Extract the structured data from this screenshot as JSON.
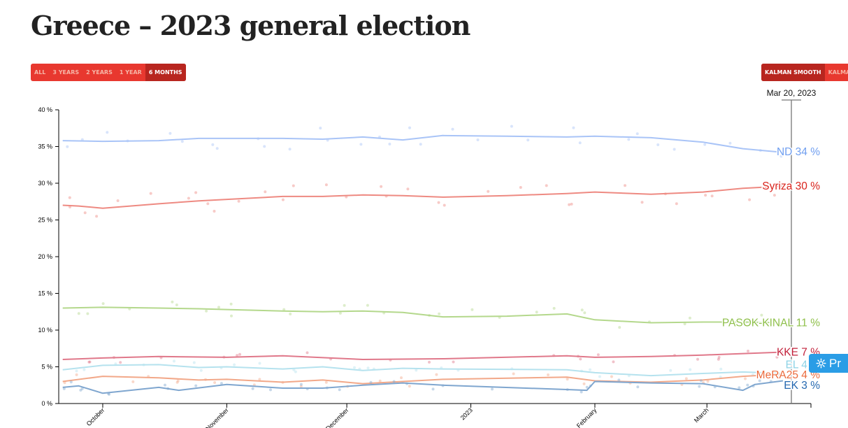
{
  "title": "Greece – 2023 general election",
  "range_buttons": [
    "ALL",
    "3 YEARS",
    "2 YEARS",
    "1 YEAR",
    "6 MONTHS"
  ],
  "range_active": "6 MONTHS",
  "smooth_buttons": [
    "KALMAN SMOOTH",
    "KALMAN"
  ],
  "smooth_active": "KALMAN SMOOTH",
  "cursor_date": "Mar 20, 2023",
  "pill_label": "Pr",
  "chart_data": {
    "type": "line",
    "x_domain": [
      "2023-09-20",
      "2023-03-27"
    ],
    "x_ticks": [
      {
        "label": "October",
        "date": "2022-10-01"
      },
      {
        "label": "November",
        "date": "2022-11-01"
      },
      {
        "label": "December",
        "date": "2022-12-01"
      },
      {
        "label": "2023",
        "date": "2023-01-01"
      },
      {
        "label": "February",
        "date": "2023-02-01"
      },
      {
        "label": "March",
        "date": "2023-03-01"
      }
    ],
    "y_ticks": [
      "0 %",
      "5 %",
      "10 %",
      "15 %",
      "20 %",
      "25 %",
      "30 %",
      "35 %",
      "40 %"
    ],
    "ylim": [
      0,
      40
    ],
    "series": [
      {
        "name": "ND",
        "label": "ND 34 %",
        "color": "#6f9ef0",
        "line_color": "#a9c4f7",
        "points": [
          [
            "2022-09-21",
            35.8
          ],
          [
            "2022-10-01",
            35.7
          ],
          [
            "2022-10-15",
            35.8
          ],
          [
            "2022-10-25",
            36.1
          ],
          [
            "2022-11-01",
            36.1
          ],
          [
            "2022-11-15",
            36.1
          ],
          [
            "2022-11-25",
            36.0
          ],
          [
            "2022-12-05",
            36.3
          ],
          [
            "2022-12-15",
            35.9
          ],
          [
            "2022-12-25",
            36.5
          ],
          [
            "2023-01-10",
            36.4
          ],
          [
            "2023-01-25",
            36.3
          ],
          [
            "2023-02-01",
            36.4
          ],
          [
            "2023-02-15",
            36.2
          ],
          [
            "2023-02-28",
            35.6
          ],
          [
            "2023-03-10",
            34.7
          ],
          [
            "2023-03-20",
            34.2
          ]
        ]
      },
      {
        "name": "Syriza",
        "label": "Syriza 30 %",
        "color": "#d9231c",
        "line_color": "#ee8a82",
        "points": [
          [
            "2022-09-21",
            27.0
          ],
          [
            "2022-09-25",
            26.9
          ],
          [
            "2022-10-01",
            26.6
          ],
          [
            "2022-10-15",
            27.2
          ],
          [
            "2022-10-25",
            27.6
          ],
          [
            "2022-11-01",
            27.8
          ],
          [
            "2022-11-15",
            28.2
          ],
          [
            "2022-11-25",
            28.2
          ],
          [
            "2022-12-05",
            28.4
          ],
          [
            "2022-12-15",
            28.3
          ],
          [
            "2022-12-25",
            28.1
          ],
          [
            "2023-01-10",
            28.3
          ],
          [
            "2023-01-25",
            28.6
          ],
          [
            "2023-02-01",
            28.8
          ],
          [
            "2023-02-15",
            28.5
          ],
          [
            "2023-02-28",
            28.8
          ],
          [
            "2023-03-10",
            29.3
          ],
          [
            "2023-03-20",
            29.6
          ]
        ]
      },
      {
        "name": "PASOK-KINAL",
        "label": "PASOK-KINAL 11 %",
        "color": "#8fc04b",
        "line_color": "#b4d88c",
        "points": [
          [
            "2022-09-21",
            13.0
          ],
          [
            "2022-10-01",
            13.1
          ],
          [
            "2022-10-15",
            13.0
          ],
          [
            "2022-10-25",
            12.9
          ],
          [
            "2022-11-01",
            12.8
          ],
          [
            "2022-11-15",
            12.6
          ],
          [
            "2022-11-25",
            12.5
          ],
          [
            "2022-12-05",
            12.6
          ],
          [
            "2022-12-15",
            12.4
          ],
          [
            "2022-12-25",
            11.8
          ],
          [
            "2023-01-10",
            11.9
          ],
          [
            "2023-01-25",
            12.2
          ],
          [
            "2023-02-01",
            11.4
          ],
          [
            "2023-02-15",
            11.0
          ],
          [
            "2023-02-28",
            11.1
          ],
          [
            "2023-03-10",
            11.1
          ],
          [
            "2023-03-20",
            11.0
          ]
        ]
      },
      {
        "name": "KKE",
        "label": "KKE 7 %",
        "color": "#c2203a",
        "line_color": "#e0788a",
        "points": [
          [
            "2022-09-21",
            6.0
          ],
          [
            "2022-10-01",
            6.2
          ],
          [
            "2022-10-15",
            6.4
          ],
          [
            "2022-11-01",
            6.3
          ],
          [
            "2022-11-15",
            6.5
          ],
          [
            "2022-12-05",
            6.0
          ],
          [
            "2022-12-25",
            6.1
          ],
          [
            "2023-01-25",
            6.5
          ],
          [
            "2023-02-01",
            6.3
          ],
          [
            "2023-02-15",
            6.4
          ],
          [
            "2023-02-28",
            6.6
          ],
          [
            "2023-03-10",
            6.8
          ],
          [
            "2023-03-20",
            7.0
          ]
        ]
      },
      {
        "name": "EL",
        "label": "EL 4 %",
        "color": "#8ed3e6",
        "line_color": "#b5e2ee",
        "points": [
          [
            "2022-09-21",
            4.6
          ],
          [
            "2022-10-01",
            5.2
          ],
          [
            "2022-10-15",
            5.3
          ],
          [
            "2022-10-25",
            4.9
          ],
          [
            "2022-11-01",
            5.0
          ],
          [
            "2022-11-15",
            4.7
          ],
          [
            "2022-11-25",
            5.0
          ],
          [
            "2022-12-05",
            4.5
          ],
          [
            "2022-12-15",
            4.8
          ],
          [
            "2022-12-25",
            4.7
          ],
          [
            "2023-01-25",
            4.6
          ],
          [
            "2023-02-01",
            4.2
          ],
          [
            "2023-02-15",
            3.8
          ],
          [
            "2023-02-28",
            4.1
          ],
          [
            "2023-03-10",
            4.3
          ],
          [
            "2023-03-20",
            4.1
          ]
        ]
      },
      {
        "name": "MeRA25",
        "label": "MeRA25 4 %",
        "color": "#ea6a3c",
        "line_color": "#f2a889",
        "points": [
          [
            "2022-09-21",
            3.0
          ],
          [
            "2022-10-01",
            3.7
          ],
          [
            "2022-10-15",
            3.5
          ],
          [
            "2022-10-25",
            3.2
          ],
          [
            "2022-11-01",
            3.3
          ],
          [
            "2022-11-15",
            2.9
          ],
          [
            "2022-11-25",
            3.2
          ],
          [
            "2022-12-05",
            2.7
          ],
          [
            "2022-12-15",
            3.0
          ],
          [
            "2022-12-25",
            3.3
          ],
          [
            "2023-01-25",
            3.6
          ],
          [
            "2023-02-01",
            3.1
          ],
          [
            "2023-02-15",
            2.9
          ],
          [
            "2023-02-28",
            3.2
          ],
          [
            "2023-03-10",
            3.7
          ],
          [
            "2023-03-20",
            4.0
          ]
        ]
      },
      {
        "name": "EK",
        "label": "EK 3 %",
        "color": "#2568b0",
        "line_color": "#7fa6cf",
        "points": [
          [
            "2022-09-21",
            2.2
          ],
          [
            "2022-09-25",
            2.4
          ],
          [
            "2022-10-01",
            1.4
          ],
          [
            "2022-10-15",
            2.2
          ],
          [
            "2022-10-20",
            1.8
          ],
          [
            "2022-11-01",
            2.6
          ],
          [
            "2022-11-15",
            2.1
          ],
          [
            "2022-11-25",
            2.1
          ],
          [
            "2022-12-05",
            2.5
          ],
          [
            "2022-12-15",
            2.8
          ],
          [
            "2022-12-25",
            2.5
          ],
          [
            "2023-01-25",
            1.9
          ],
          [
            "2023-01-30",
            1.8
          ],
          [
            "2023-02-01",
            3.0
          ],
          [
            "2023-02-15",
            2.8
          ],
          [
            "2023-02-28",
            2.7
          ],
          [
            "2023-03-10",
            1.8
          ],
          [
            "2023-03-13",
            2.6
          ],
          [
            "2023-03-20",
            3.1
          ]
        ]
      }
    ]
  }
}
